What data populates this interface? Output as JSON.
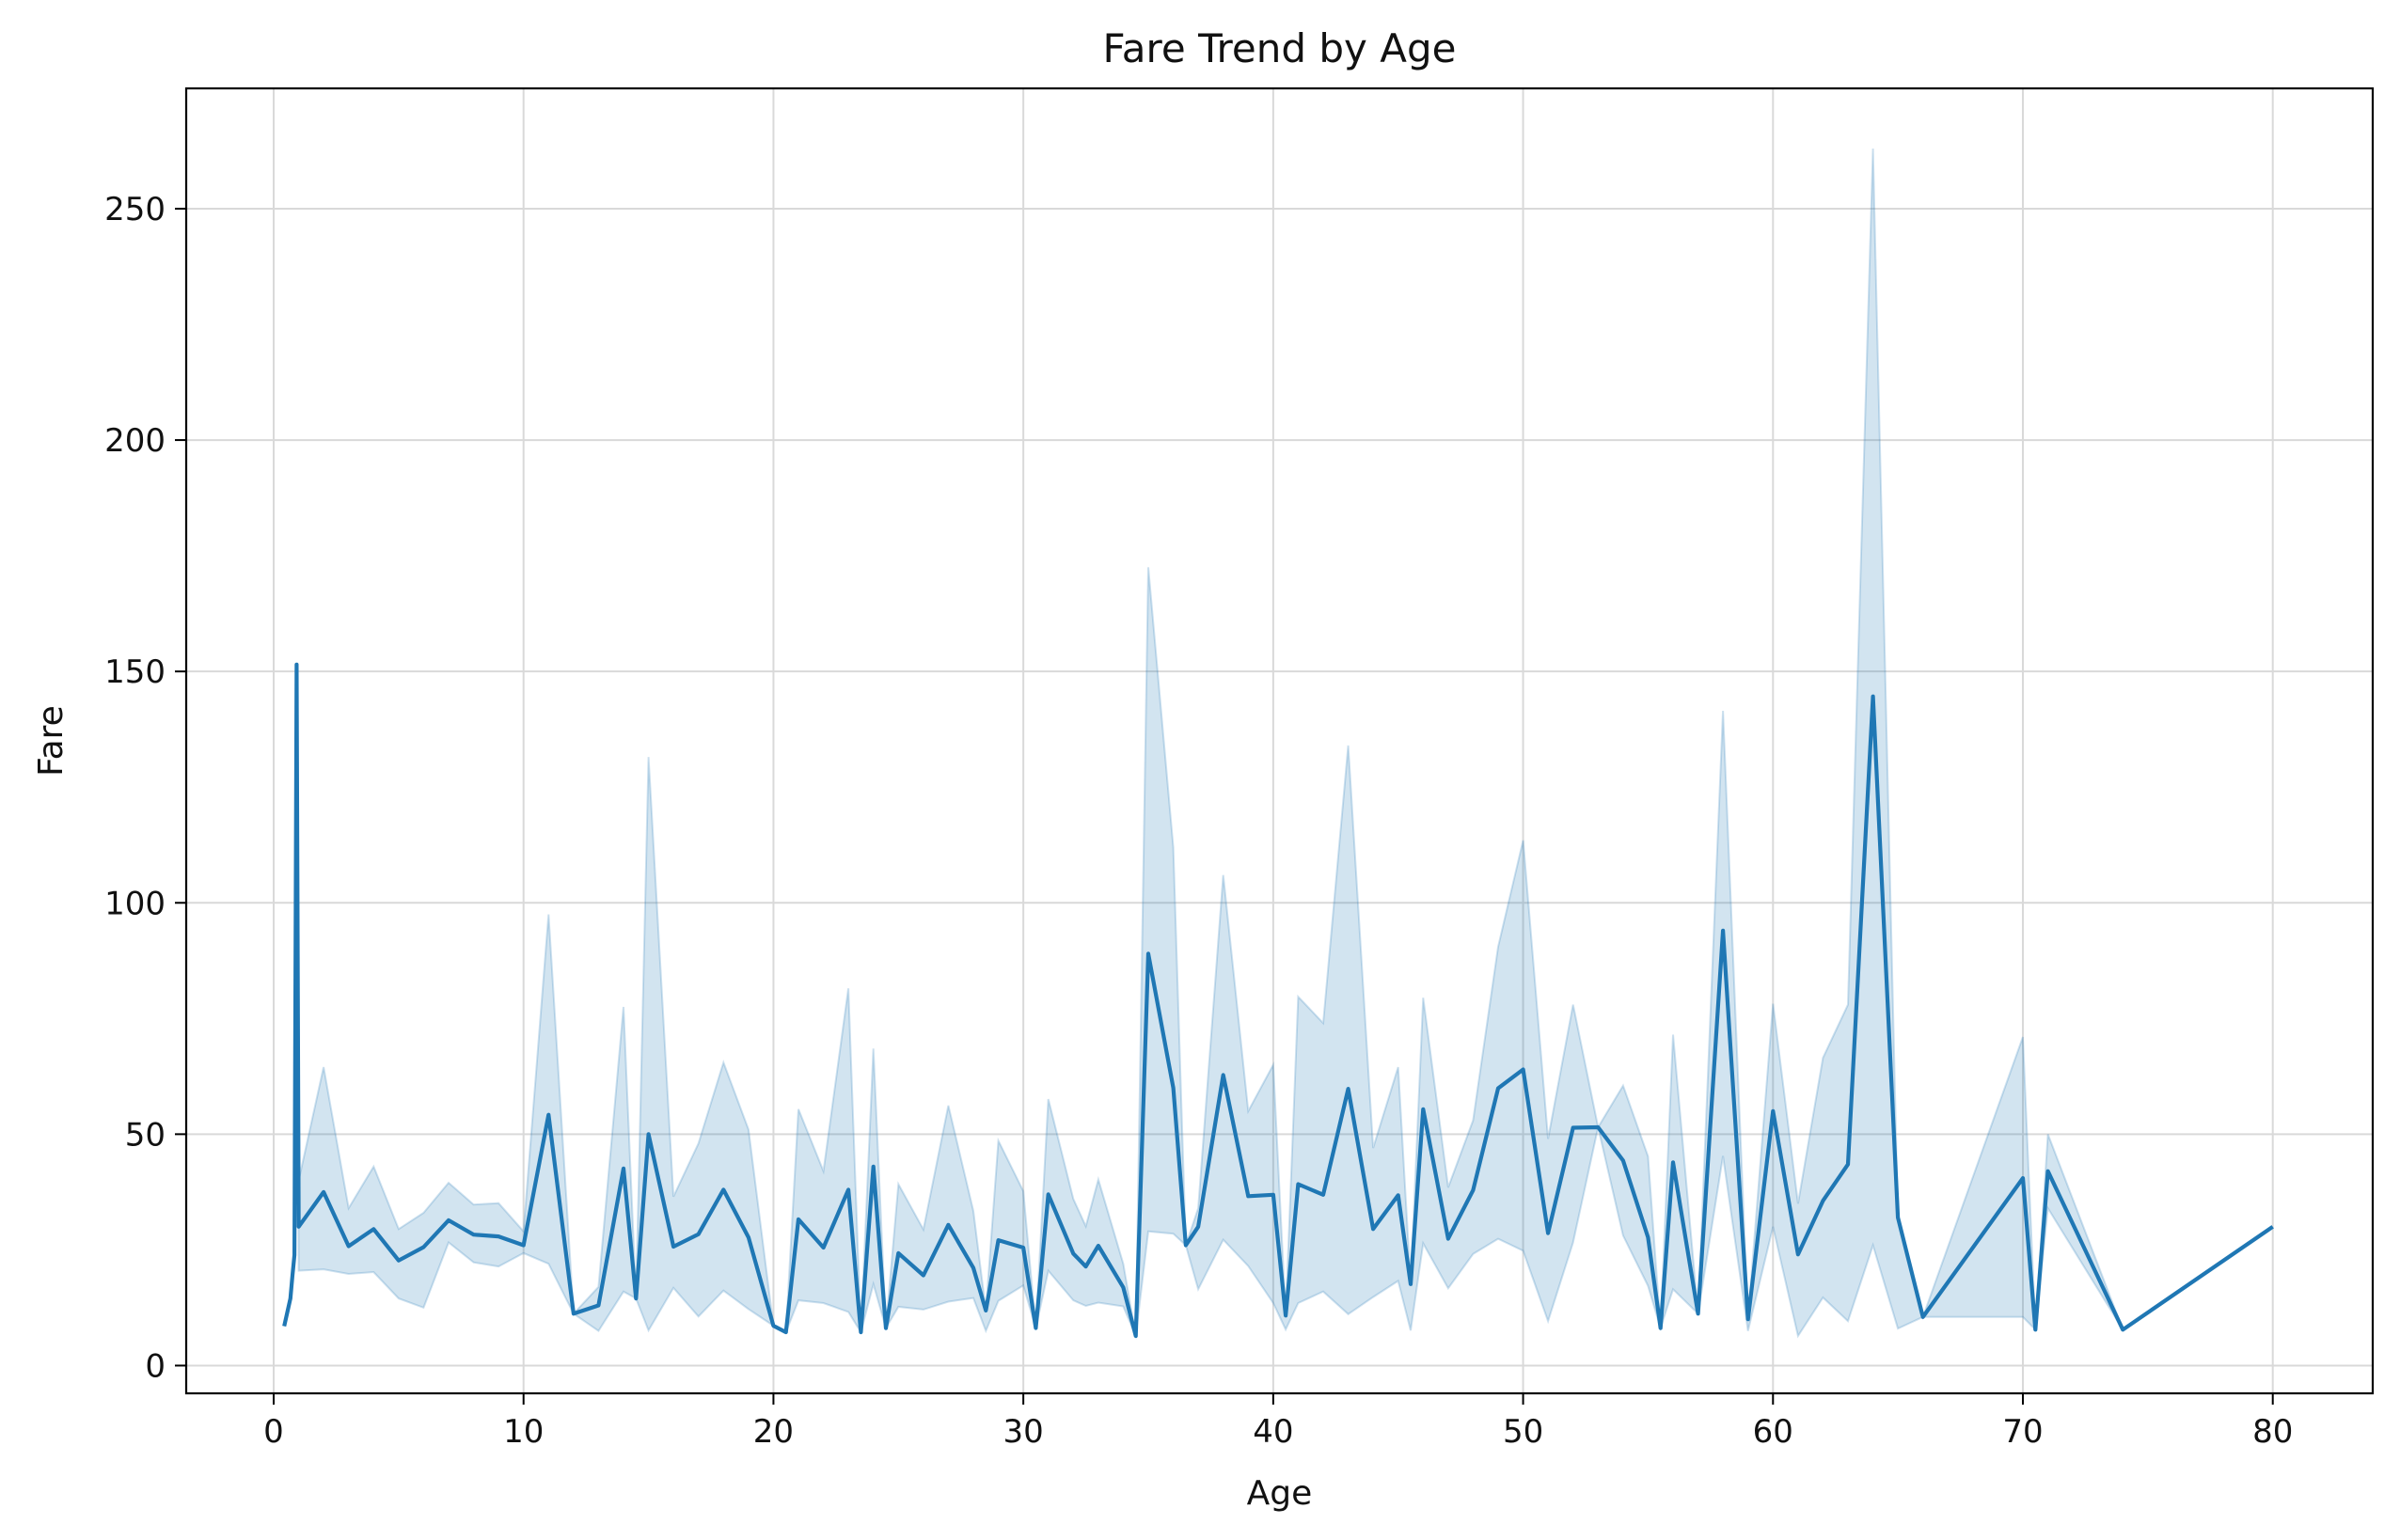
{
  "chart_data": {
    "type": "line",
    "title": "Fare Trend by Age",
    "xlabel": "Age",
    "ylabel": "Fare",
    "xlim": [
      -3.5,
      84
    ],
    "ylim": [
      -6,
      276
    ],
    "xticks": [
      0,
      10,
      20,
      30,
      40,
      50,
      60,
      70,
      80
    ],
    "yticks": [
      0,
      50,
      100,
      150,
      200,
      250
    ],
    "grid": true,
    "legend": "none",
    "colors": {
      "line": "#1f77b4",
      "band": "#1f77b4",
      "grid": "#d9d9d9"
    },
    "series": [
      {
        "x": [
          0.42,
          0.67,
          0.75,
          0.83,
          0.92,
          1,
          2,
          3,
          4,
          5,
          6,
          7,
          8,
          9,
          10,
          11,
          12,
          13,
          14,
          14.5,
          15,
          16,
          17,
          18,
          19,
          20,
          20.5,
          21,
          22,
          23,
          23.5,
          24,
          24.5,
          25,
          26,
          27,
          28,
          28.5,
          29,
          30,
          30.5,
          31,
          32,
          32.5,
          33,
          34,
          34.5,
          35,
          36,
          36.5,
          37,
          38,
          39,
          40,
          40.5,
          41,
          42,
          43,
          44,
          45,
          45.5,
          46,
          47,
          48,
          49,
          50,
          51,
          52,
          53,
          54,
          55,
          55.5,
          56,
          57,
          58,
          59,
          60,
          61,
          62,
          63,
          64,
          65,
          66,
          70,
          70.5,
          71,
          74,
          80
        ],
        "y": [
          8.5,
          14.5,
          19.3,
          23.9,
          151.5,
          30,
          37.5,
          25.8,
          29.5,
          22.7,
          25.6,
          31.4,
          28.3,
          27.9,
          26,
          54.2,
          11.2,
          13,
          42.6,
          14.5,
          50,
          25.7,
          28.4,
          38,
          27.7,
          8.6,
          7.2,
          31.6,
          25.5,
          38,
          7.2,
          43,
          8.1,
          24.3,
          19.5,
          30.4,
          21.1,
          11.9,
          27.1,
          25.5,
          8.1,
          37,
          24.2,
          21.4,
          25.9,
          16.9,
          6.4,
          89,
          60,
          26,
          30,
          62.8,
          36.6,
          36.9,
          10.8,
          39.2,
          36.9,
          59.8,
          29.5,
          36.8,
          17.6,
          55.4,
          27.4,
          37.9,
          59.9,
          64,
          28.6,
          51.4,
          51.5,
          44.3,
          27.7,
          8.1,
          43.9,
          11.2,
          94,
          10,
          55,
          24,
          35.6,
          43.5,
          144.6,
          32,
          10.5,
          40.5,
          7.75,
          42,
          7.75,
          30
        ]
      }
    ],
    "ci_upper": [
      8.5,
      14.5,
      19.3,
      23.9,
      151.5,
      40,
      64.5,
      34,
      43,
      29.5,
      33,
      39.5,
      34.8,
      35.1,
      29,
      97.5,
      11.2,
      17,
      77.5,
      14.5,
      131.5,
      36.5,
      48,
      65.5,
      51,
      8.6,
      7.2,
      55.4,
      42,
      81.5,
      7.2,
      68.5,
      8.1,
      39.2,
      29.4,
      56.2,
      33.4,
      11.9,
      48.6,
      37.7,
      8.1,
      57.6,
      36,
      30.1,
      40.2,
      22,
      6.4,
      172.5,
      112,
      26,
      34,
      106,
      55,
      65,
      10.8,
      79.7,
      74,
      134,
      47,
      64.5,
      17.6,
      79.5,
      38.5,
      53,
      90.5,
      113.5,
      49,
      78,
      51.5,
      60.5,
      45.2,
      8.1,
      71.5,
      11.2,
      141.5,
      10,
      78.2,
      35,
      66.5,
      78,
      263,
      32,
      10.5,
      71,
      7.75,
      50,
      7.75,
      30
    ],
    "ci_lower": [
      8.5,
      14.5,
      19.3,
      23.9,
      151.5,
      20.5,
      20.8,
      19.8,
      20.2,
      14.5,
      12.5,
      26.6,
      22.3,
      21.4,
      24.3,
      22,
      11.2,
      7.5,
      16,
      14.5,
      7.6,
      16.8,
      10.6,
      16.2,
      12.2,
      8.6,
      7.2,
      14.1,
      13.5,
      11.6,
      7.2,
      17.6,
      8.1,
      12.7,
      12.1,
      13.8,
      14.6,
      7.5,
      14,
      17.3,
      8.1,
      20.5,
      14.1,
      12.9,
      13.6,
      12.8,
      6.4,
      29,
      28.5,
      26,
      16.5,
      27.2,
      21.5,
      13.5,
      7.8,
      13.5,
      16,
      11.1,
      14.8,
      18.3,
      7.6,
      26.4,
      16.7,
      24.1,
      27.4,
      24.8,
      9.6,
      26.6,
      51.5,
      28.1,
      17.2,
      8.1,
      16.5,
      11.2,
      45.3,
      7.5,
      30,
      6.4,
      14.7,
      9.6,
      26,
      8,
      10.5,
      10.5,
      7.75,
      34,
      7.75,
      30
    ]
  }
}
